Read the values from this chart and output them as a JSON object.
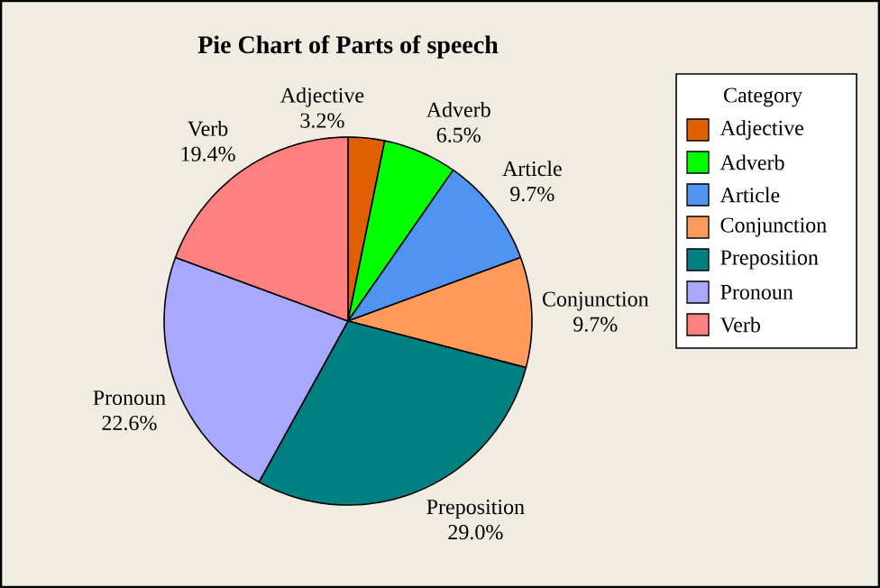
{
  "chart_data": {
    "type": "pie",
    "title": "Pie Chart of Parts of speech",
    "legend_title": "Category",
    "legend": "right",
    "categories": [
      "Adjective",
      "Adverb",
      "Article",
      "Conjunction",
      "Preposition",
      "Pronoun",
      "Verb"
    ],
    "values": [
      3.2,
      6.5,
      9.7,
      9.7,
      29.0,
      22.6,
      19.4
    ],
    "value_labels": [
      "3.2%",
      "6.5%",
      "9.7%",
      "9.7%",
      "29.0%",
      "22.6%",
      "19.4%"
    ],
    "colors": [
      "#e06000",
      "#00ff00",
      "#4f94f0",
      "#ff9a5a",
      "#008080",
      "#a8a8ff",
      "#ff8080"
    ]
  }
}
